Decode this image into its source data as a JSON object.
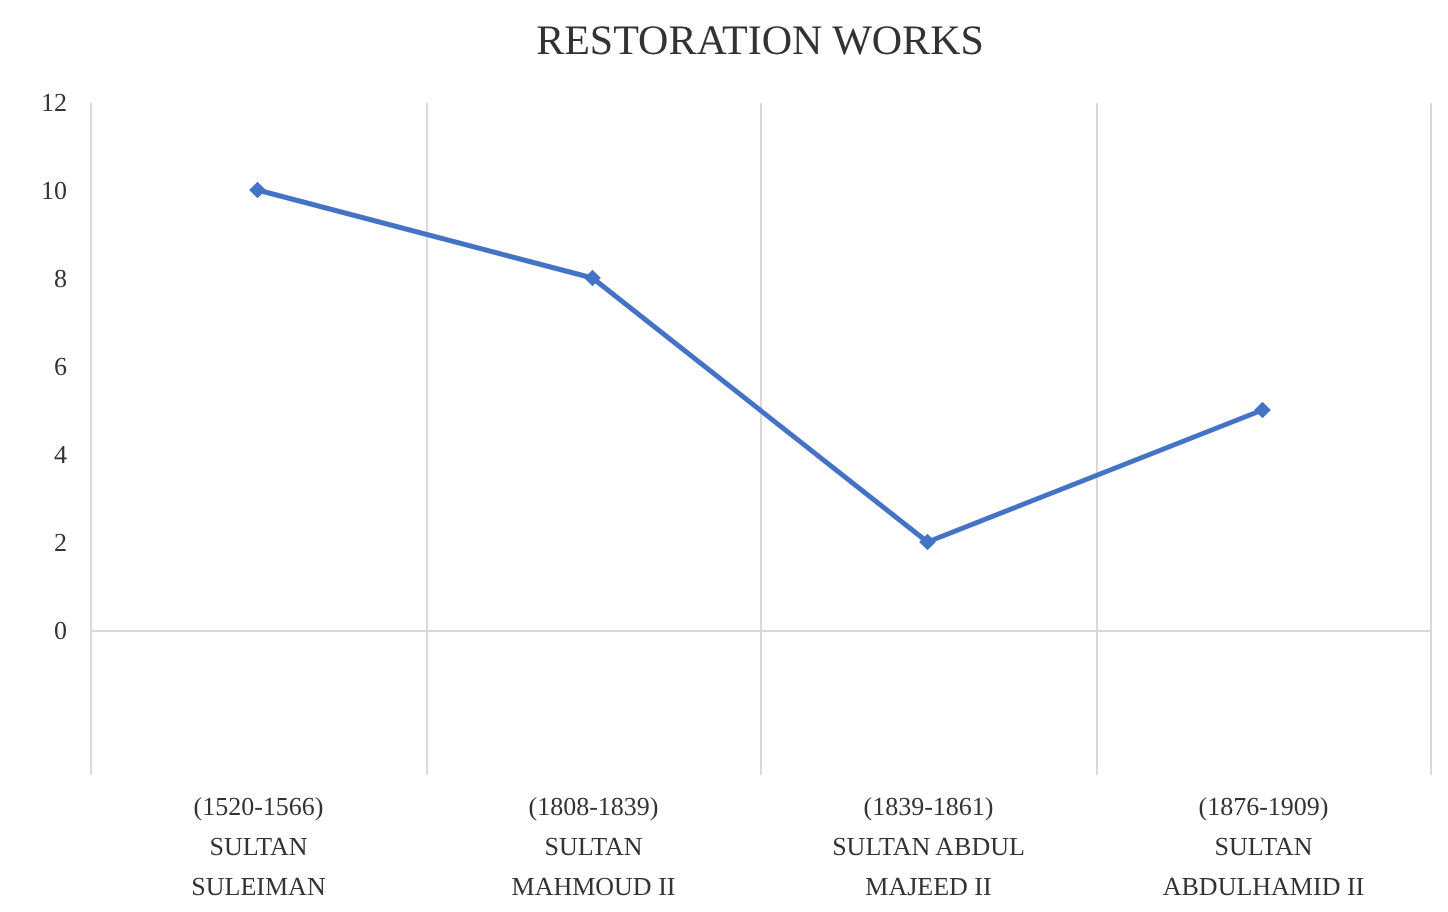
{
  "chart_data": {
    "type": "line",
    "title": "RESTORATION WORKS",
    "categories": [
      "(1520-1566)\nSULTAN\nSULEIMAN",
      "(1808-1839)\nSULTAN\nMAHMOUD II",
      "(1839-1861)\nSULTAN ABDUL\nMAJEED II",
      "(1876-1909)\nSULTAN\nABDULHAMID II"
    ],
    "series": [
      {
        "color": "#4472c4",
        "values": [
          10,
          8,
          2,
          5
        ]
      }
    ],
    "ylim": [
      0,
      12
    ],
    "yticks": [
      0,
      2,
      4,
      6,
      8,
      10,
      12
    ],
    "grid": "x",
    "marker": "diamond",
    "line_style": "solid"
  }
}
